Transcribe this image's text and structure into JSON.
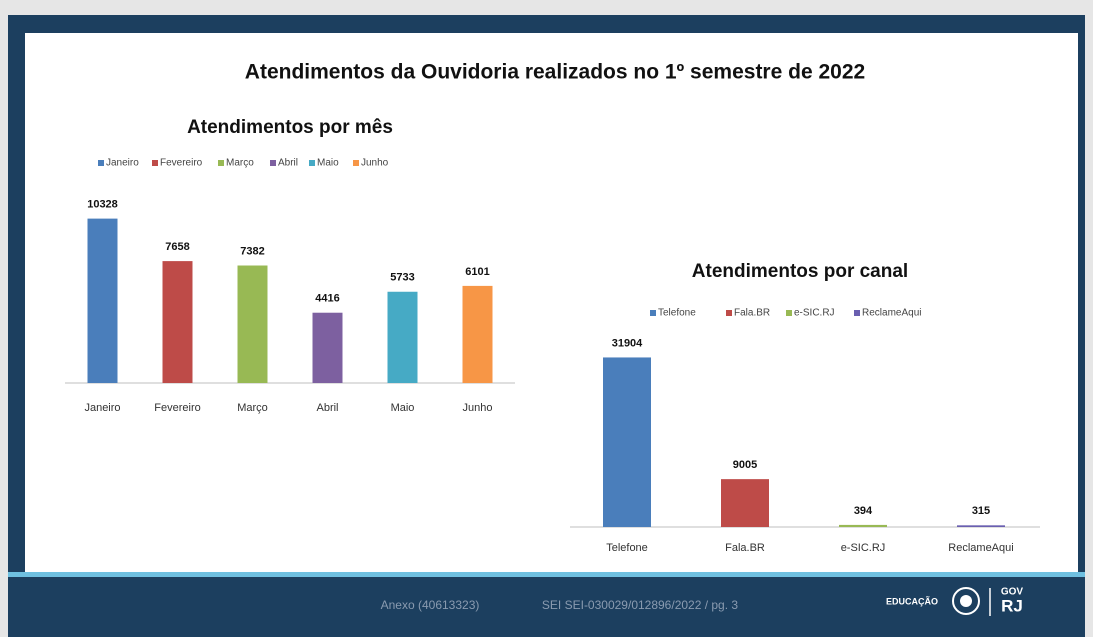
{
  "title": "Atendimentos da Ouvidoria realizados no 1º semestre de 2022",
  "chart_data": [
    {
      "type": "bar",
      "title": "Atendimentos por mês",
      "categories": [
        "Janeiro",
        "Fevereiro",
        "Março",
        "Abril",
        "Maio",
        "Junho"
      ],
      "values": [
        10328,
        7658,
        7382,
        4416,
        5733,
        6101
      ],
      "colors": [
        "#4a7ebb",
        "#be4b48",
        "#98b954",
        "#7d60a0",
        "#46aac5",
        "#f79646"
      ],
      "ylim": [
        0,
        12000
      ]
    },
    {
      "type": "bar",
      "title": "Atendimentos por canal",
      "categories": [
        "Telefone",
        "Fala.BR",
        "e-SIC.RJ",
        "ReclameAqui"
      ],
      "values": [
        31904,
        9005,
        394,
        315
      ],
      "colors": [
        "#4a7ebb",
        "#be4b48",
        "#98b954",
        "#6a5fb0"
      ],
      "ylim": [
        0,
        35000
      ]
    }
  ],
  "footer": {
    "annex": "Anexo (40613323)",
    "sei": "SEI SEI-030029/012896/2022 / pg. 3",
    "brand": "EDUCAÇÃO",
    "gov": "GOV",
    "rj": "RJ"
  }
}
